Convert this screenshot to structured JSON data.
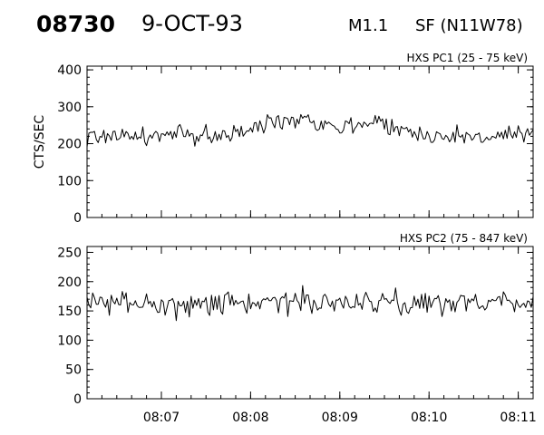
{
  "header": {
    "event_id": "08730",
    "date": "9-OCT-93",
    "flare_class": "M1.1",
    "flare_location": "SF (N11W78)"
  },
  "chart_data": [
    {
      "type": "line",
      "title": "HXS PC1 (25 - 75 keV)",
      "ylabel": "CTS/SEC",
      "xlabel": "",
      "ylim": [
        0,
        410
      ],
      "yticks": [
        0,
        100,
        200,
        300,
        400
      ],
      "xlim": [
        "08:06:10",
        "08:11:10"
      ],
      "xticks": [
        "08:07",
        "08:08",
        "08:09",
        "08:10",
        "08:11"
      ],
      "series": [
        {
          "x": [
            "08:06:10",
            "08:06:20",
            "08:06:30",
            "08:06:40",
            "08:06:50",
            "08:07:00",
            "08:07:10",
            "08:07:20",
            "08:07:30",
            "08:07:40",
            "08:07:50",
            "08:08:00",
            "08:08:10",
            "08:08:20",
            "08:08:30",
            "08:08:40",
            "08:08:50",
            "08:09:00",
            "08:09:10",
            "08:09:20",
            "08:09:30",
            "08:09:40",
            "08:09:50",
            "08:10:00",
            "08:10:10",
            "08:10:20",
            "08:10:30",
            "08:10:40",
            "08:10:50",
            "08:11:00",
            "08:11:10"
          ],
          "values": [
            215,
            222,
            225,
            220,
            218,
            222,
            225,
            220,
            224,
            223,
            226,
            235,
            255,
            265,
            272,
            268,
            255,
            245,
            250,
            262,
            258,
            238,
            228,
            225,
            222,
            220,
            218,
            220,
            222,
            220,
            222
          ]
        }
      ],
      "grid": false
    },
    {
      "type": "line",
      "title": "HXS PC2 (75 - 847 keV)",
      "ylabel": "",
      "xlabel": "",
      "ylim": [
        0,
        260
      ],
      "yticks": [
        0,
        50,
        100,
        150,
        200,
        250
      ],
      "xlim": [
        "08:06:10",
        "08:11:10"
      ],
      "xticks": [
        "08:07",
        "08:08",
        "08:09",
        "08:10",
        "08:11"
      ],
      "series": [
        {
          "x": [
            "08:06:10",
            "08:06:20",
            "08:06:30",
            "08:06:40",
            "08:06:50",
            "08:07:00",
            "08:07:10",
            "08:07:20",
            "08:07:30",
            "08:07:40",
            "08:07:50",
            "08:08:00",
            "08:08:10",
            "08:08:20",
            "08:08:30",
            "08:08:40",
            "08:08:50",
            "08:09:00",
            "08:09:10",
            "08:09:20",
            "08:09:30",
            "08:09:40",
            "08:09:50",
            "08:10:00",
            "08:10:10",
            "08:10:20",
            "08:10:30",
            "08:10:40",
            "08:10:50",
            "08:11:00",
            "08:11:10"
          ],
          "values": [
            162,
            160,
            165,
            163,
            162,
            165,
            163,
            161,
            164,
            166,
            163,
            162,
            168,
            166,
            165,
            170,
            164,
            163,
            167,
            165,
            161,
            163,
            166,
            164,
            162,
            165,
            166,
            164,
            167,
            168,
            166
          ]
        }
      ],
      "grid": false
    }
  ]
}
